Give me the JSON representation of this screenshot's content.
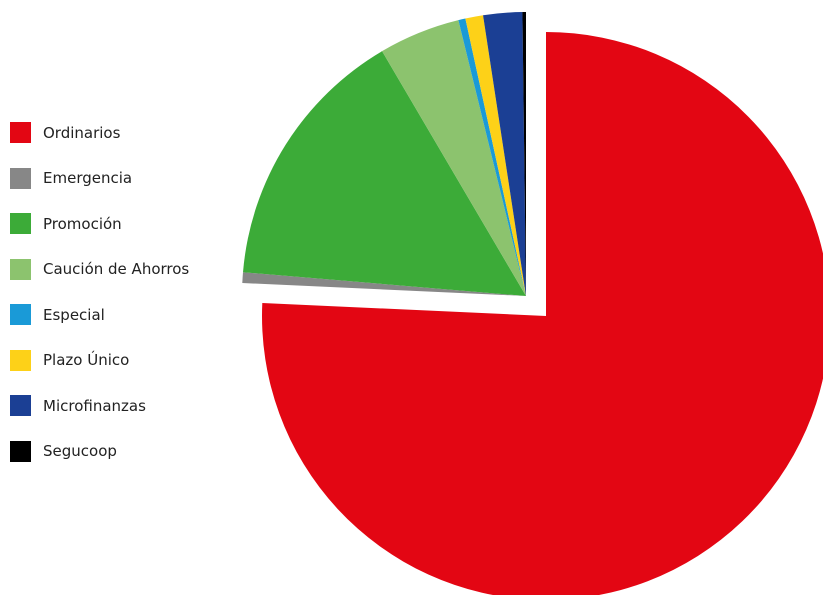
{
  "chart_data": {
    "type": "pie",
    "title": "",
    "legend_position": "left",
    "start": "top",
    "direction": "clockwise",
    "exploded": [
      "Ordinarios"
    ],
    "series": [
      {
        "name": "Ordinarios",
        "value": 75.2,
        "color": "#e30613"
      },
      {
        "name": "Emergencia",
        "value": 0.6,
        "color": "#878787"
      },
      {
        "name": "Promoción",
        "value": 15.1,
        "color": "#3cab38"
      },
      {
        "name": "Caución de Ahorros",
        "value": 4.6,
        "color": "#8cc36e"
      },
      {
        "name": "Especial",
        "value": 0.4,
        "color": "#1a9ad7"
      },
      {
        "name": "Plazo Único",
        "value": 1.0,
        "color": "#fdd118"
      },
      {
        "name": "Microfinanzas",
        "value": 2.2,
        "color": "#1b3f94"
      },
      {
        "name": "Segucoop",
        "value": 0.2,
        "color": "#000000"
      }
    ]
  }
}
